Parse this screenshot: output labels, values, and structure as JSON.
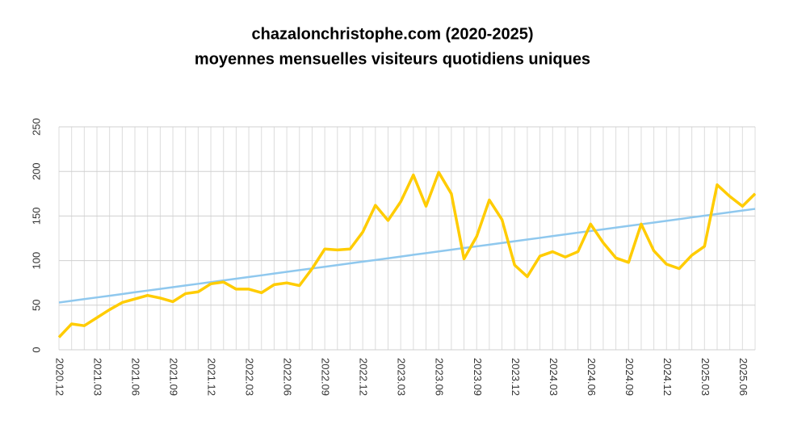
{
  "chart_data": {
    "type": "line",
    "title": [
      "chazalonchristophe.com (2020-2025)",
      "moyennes mensuelles visiteurs quotidiens uniques"
    ],
    "categories": [
      "2020.12",
      null,
      null,
      "2021.03",
      null,
      null,
      "2021.06",
      null,
      null,
      "2021.09",
      null,
      null,
      "2021.12",
      null,
      null,
      "2022.03",
      null,
      null,
      "2022.06",
      null,
      null,
      "2022.09",
      null,
      null,
      "2022.12",
      null,
      null,
      "2023.03",
      null,
      null,
      "2023.06",
      null,
      null,
      "2023.09",
      null,
      null,
      "2023.12",
      null,
      null,
      "2024.03",
      null,
      null,
      "2024.06",
      null,
      null,
      "2024.09",
      null,
      null,
      "2024.12",
      null,
      null,
      "2025.03",
      null,
      null,
      "2025.06",
      null
    ],
    "series": [
      {
        "color": "#ffcc00",
        "values": [
          14,
          29,
          27,
          36,
          45,
          53,
          57,
          61,
          58,
          54,
          63,
          65,
          74,
          76,
          68,
          68,
          64,
          73,
          75,
          72,
          91,
          113,
          112,
          113,
          132,
          162,
          145,
          166,
          196,
          161,
          199,
          175,
          102,
          127,
          168,
          146,
          95,
          82,
          105,
          110,
          104,
          110,
          141,
          120,
          103,
          98,
          141,
          111,
          96,
          91,
          106,
          116,
          185,
          172,
          161,
          175
        ]
      },
      {
        "color": "#8fc8ee",
        "values": [
          53.0,
          54.9,
          56.8,
          58.7,
          60.6,
          62.5,
          64.5,
          66.4,
          68.3,
          70.2,
          72.1,
          74.0,
          75.9,
          77.8,
          79.7,
          81.6,
          83.5,
          85.5,
          87.4,
          89.3,
          91.2,
          93.1,
          95.0,
          96.9,
          98.8,
          100.7,
          102.6,
          104.5,
          106.5,
          108.4,
          110.3,
          112.2,
          114.1,
          116.0,
          117.9,
          119.8,
          121.7,
          123.6,
          125.5,
          127.5,
          129.4,
          131.3,
          133.2,
          135.1,
          137.0,
          138.9,
          140.8,
          142.7,
          144.6,
          146.5,
          148.5,
          150.4,
          152.3,
          154.2,
          156.1,
          158.0
        ]
      }
    ],
    "ylim": [
      0,
      250
    ],
    "yticks": [
      0,
      50,
      100,
      150,
      200,
      250
    ],
    "grid": true
  }
}
